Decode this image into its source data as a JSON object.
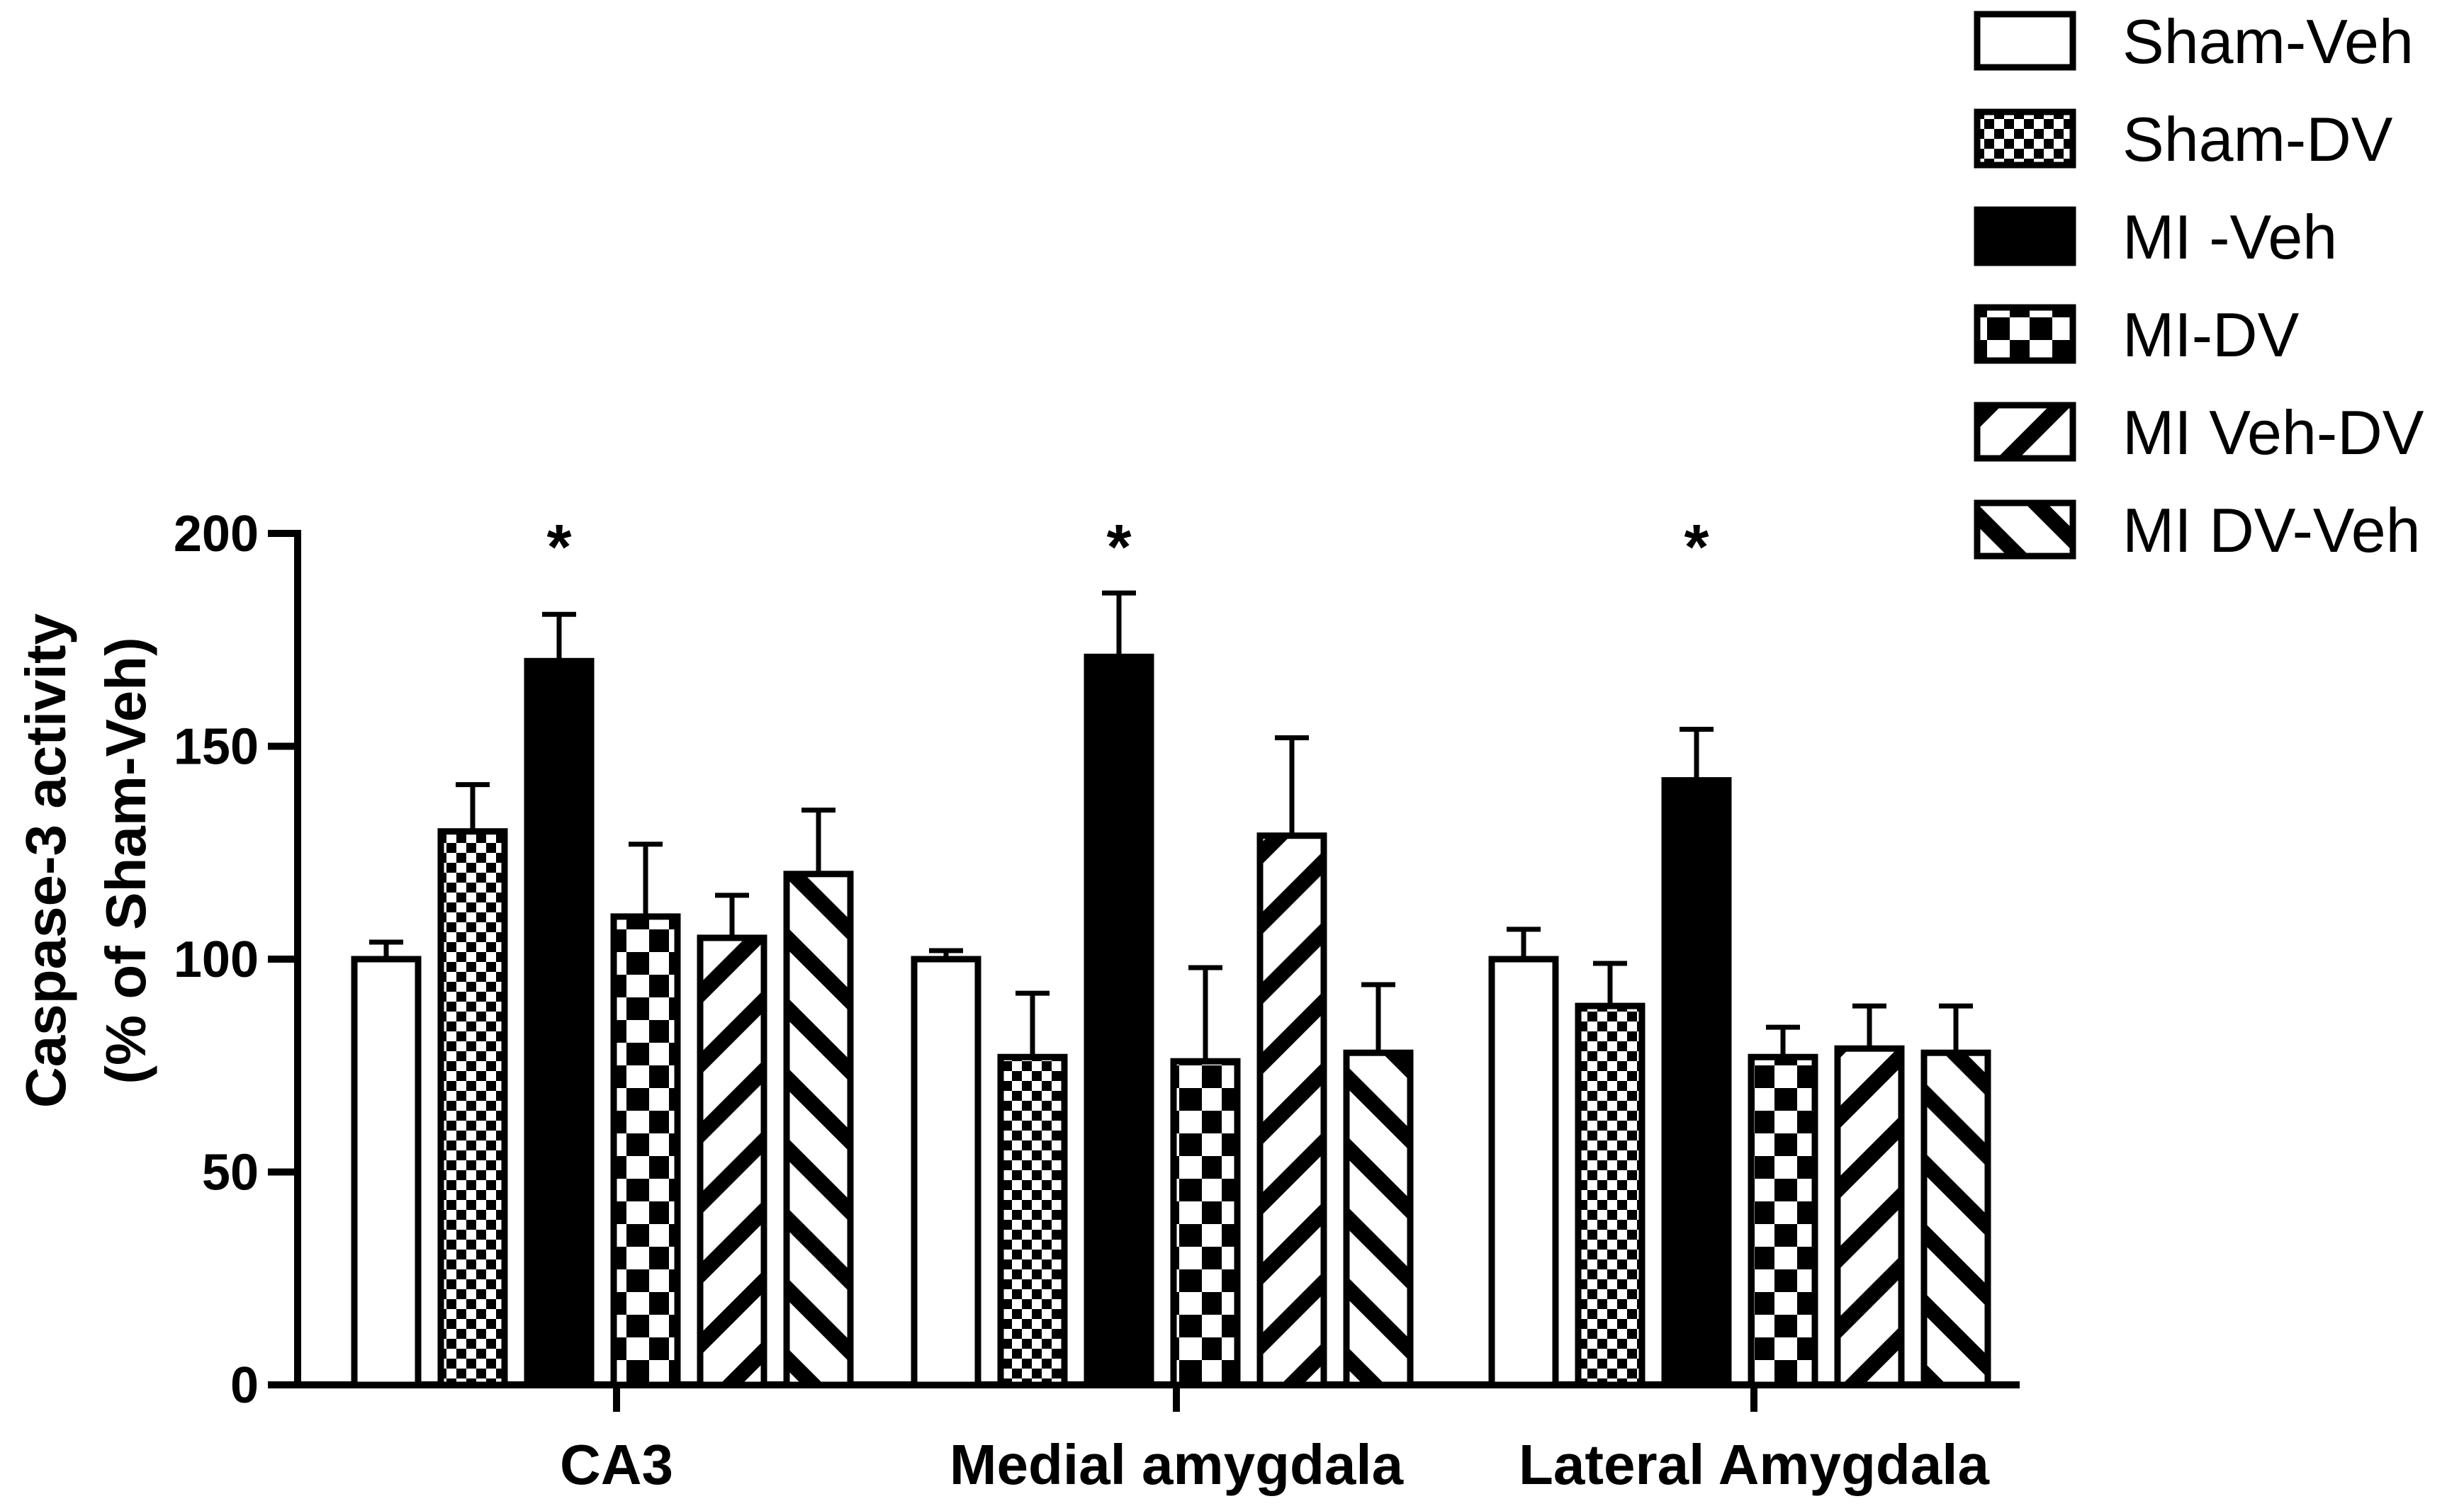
{
  "chart_data": {
    "type": "bar",
    "title": "",
    "xlabel": "",
    "ylabel": "Caspase-3 activity",
    "ylabel_line2": "(% of Sham-Veh)",
    "ylim": [
      0,
      200
    ],
    "yticks": [
      0,
      50,
      100,
      150,
      200
    ],
    "grid": false,
    "legend_position": "top-right",
    "categories": [
      "CA3",
      "Medial amygdala",
      "Lateral Amygdala"
    ],
    "series": [
      {
        "name": "Sham-Veh",
        "pattern": "white",
        "values": [
          100,
          100,
          100
        ],
        "errors": [
          4,
          2,
          7
        ]
      },
      {
        "name": "Sham-DV",
        "pattern": "checker",
        "values": [
          130,
          77,
          89
        ],
        "errors": [
          11,
          15,
          10
        ]
      },
      {
        "name": "MI -Veh",
        "pattern": "black",
        "values": [
          170,
          171,
          142
        ],
        "errors": [
          11,
          15,
          12
        ]
      },
      {
        "name": "MI-DV",
        "pattern": "blocks",
        "values": [
          110,
          76,
          77
        ],
        "errors": [
          17,
          22,
          7
        ]
      },
      {
        "name": "MI Veh-DV",
        "pattern": "diag-down",
        "values": [
          105,
          129,
          79
        ],
        "errors": [
          10,
          23,
          10
        ]
      },
      {
        "name": "MI DV-Veh",
        "pattern": "diag-up",
        "values": [
          120,
          78,
          78
        ],
        "errors": [
          15,
          16,
          11
        ]
      }
    ],
    "annotations": [
      {
        "category": "CA3",
        "series": "MI -Veh",
        "text": "*"
      },
      {
        "category": "Medial amygdala",
        "series": "MI -Veh",
        "text": "*"
      },
      {
        "category": "Lateral Amygdala",
        "series": "MI -Veh",
        "text": "*"
      }
    ]
  }
}
